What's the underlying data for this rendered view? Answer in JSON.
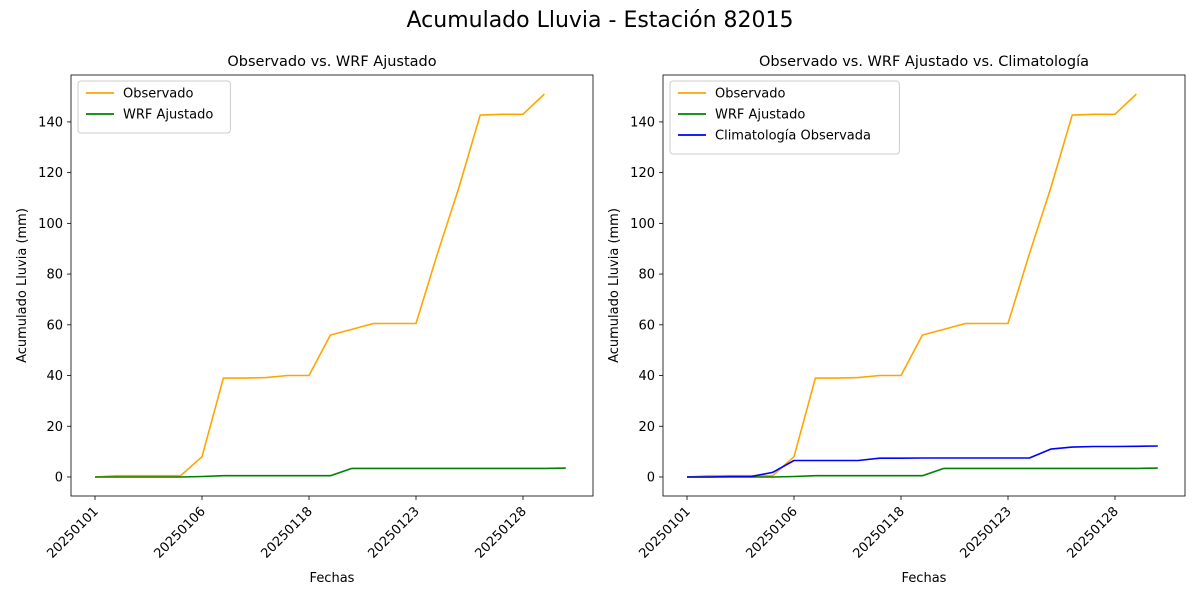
{
  "figure": {
    "suptitle": "Acumulado Lluvia - Estación 82015"
  },
  "chart_data": [
    {
      "type": "line",
      "title": "Observado vs. WRF Ajustado",
      "xlabel": "Fechas",
      "ylabel": "Acumulado Lluvia (mm)",
      "x_ticklabels": [
        "20250101",
        "20250106",
        "20250118",
        "20250123",
        "20250128"
      ],
      "x_tick_index": [
        0,
        5,
        10,
        15,
        20
      ],
      "ylim": [
        -7.5,
        158.5
      ],
      "yticks": [
        0,
        20,
        40,
        60,
        80,
        100,
        120,
        140
      ],
      "legend_position": "upper-left",
      "grid": false,
      "series": [
        {
          "name": "Observado",
          "color": "#ffa500",
          "values": [
            0,
            0.5,
            0.5,
            0.5,
            0.5,
            8,
            39,
            39,
            39.2,
            40,
            40,
            56,
            58.2,
            60.5,
            60.5,
            60.5,
            88,
            114,
            142.7,
            143,
            143,
            151
          ]
        },
        {
          "name": "WRF Ajustado",
          "color": "#008000",
          "values": [
            0,
            0,
            0,
            0,
            0,
            0.2,
            0.5,
            0.5,
            0.5,
            0.5,
            0.5,
            0.5,
            3.4,
            3.4,
            3.4,
            3.4,
            3.4,
            3.4,
            3.4,
            3.4,
            3.4,
            3.4,
            3.5
          ]
        }
      ]
    },
    {
      "type": "line",
      "title": "Observado vs. WRF Ajustado vs. Climatología",
      "xlabel": "Fechas",
      "ylabel": "Acumulado Lluvia (mm)",
      "x_ticklabels": [
        "20250101",
        "20250106",
        "20250118",
        "20250123",
        "20250128"
      ],
      "x_tick_index": [
        0,
        5,
        10,
        15,
        20
      ],
      "ylim": [
        -7.5,
        158.5
      ],
      "yticks": [
        0,
        20,
        40,
        60,
        80,
        100,
        120,
        140
      ],
      "legend_position": "upper-left",
      "grid": false,
      "series": [
        {
          "name": "Observado",
          "color": "#ffa500",
          "values": [
            0,
            0.5,
            0.5,
            0.5,
            0.5,
            8,
            39,
            39,
            39.2,
            40,
            40,
            56,
            58.2,
            60.5,
            60.5,
            60.5,
            88,
            114,
            142.7,
            143,
            143,
            151
          ]
        },
        {
          "name": "WRF Ajustado",
          "color": "#008000",
          "values": [
            0,
            0,
            0,
            0,
            0,
            0.2,
            0.5,
            0.5,
            0.5,
            0.5,
            0.5,
            0.5,
            3.4,
            3.4,
            3.4,
            3.4,
            3.4,
            3.4,
            3.4,
            3.4,
            3.4,
            3.4,
            3.5
          ]
        },
        {
          "name": "Climatología Observada",
          "color": "#0000ff",
          "values": [
            0,
            0,
            0.2,
            0.2,
            1.8,
            6.5,
            6.5,
            6.5,
            6.5,
            7.4,
            7.4,
            7.5,
            7.5,
            7.5,
            7.5,
            7.5,
            7.5,
            11,
            11.8,
            12,
            12,
            12.1,
            12.2
          ]
        }
      ]
    }
  ]
}
